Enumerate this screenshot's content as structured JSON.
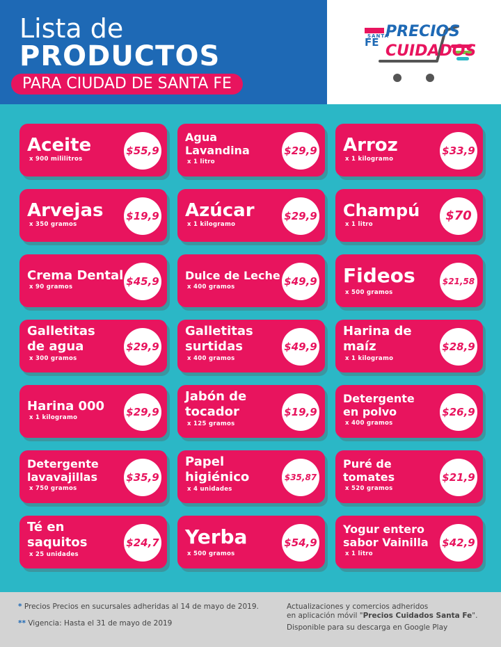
{
  "header": {
    "title_line1": "Lista de",
    "title_line2": "PRODUCTOS",
    "subtitle": "PARA CIUDAD DE SANTA FE",
    "logo": {
      "small_top": "SANTA",
      "small_bottom": "FE",
      "line1": "PRECIOS",
      "line2": "CUIDADOS"
    }
  },
  "colors": {
    "blue": "#1e69b5",
    "pink": "#e8145e",
    "teal": "#2bb7c6",
    "green": "#7ac143",
    "gray": "#d3d3d3"
  },
  "products": [
    {
      "name": "Aceite",
      "qty": "x 900 mililitros",
      "price": "$55,9"
    },
    {
      "name": "Agua Lavandina",
      "qty": "x 1 litro",
      "price": "$29,9"
    },
    {
      "name": "Arroz",
      "qty": "x 1 kilogramo",
      "price": "$33,9"
    },
    {
      "name": "Arvejas",
      "qty": "x 350 gramos",
      "price": "$19,9"
    },
    {
      "name": "Azúcar",
      "qty": "x 1 kilogramo",
      "price": "$29,9"
    },
    {
      "name": "Champú",
      "qty": "x 1 litro",
      "price": "$70"
    },
    {
      "name": "Crema Dental",
      "qty": "x 90 gramos",
      "price": "$45,9"
    },
    {
      "name": "Dulce de Leche",
      "qty": "x 400 gramos",
      "price": "$49,9"
    },
    {
      "name": "Fideos",
      "qty": "x 500 gramos",
      "price": "$21,58"
    },
    {
      "name": "Galletitas de agua",
      "qty": "x 300 gramos",
      "price": "$29,9"
    },
    {
      "name": "Galletitas surtidas",
      "qty": "x 400 gramos",
      "price": "$49,9"
    },
    {
      "name": "Harina de maíz",
      "qty": "x 1 kilogramo",
      "price": "$28,9"
    },
    {
      "name": "Harina 000",
      "qty": "x 1 kilogramo",
      "price": "$29,9"
    },
    {
      "name": "Jabón de tocador",
      "qty": "x 125 gramos",
      "price": "$19,9"
    },
    {
      "name": "Detergente en polvo",
      "qty": "x 400 gramos",
      "price": "$26,9"
    },
    {
      "name": "Detergente lavavajillas",
      "qty": "x 750 gramos",
      "price": "$35,9"
    },
    {
      "name": "Papel higiénico",
      "qty": "x 4 unidades",
      "price": "$35,87"
    },
    {
      "name": "Puré de tomates",
      "qty": "x 520 gramos",
      "price": "$21,9"
    },
    {
      "name": "Té en saquitos",
      "qty": "x 25 unidades",
      "price": "$24,7"
    },
    {
      "name": "Yerba",
      "qty": "x 500 gramos",
      "price": "$54,9"
    },
    {
      "name": "Yogur entero sabor Vainilla",
      "qty": "x 1 litro",
      "price": "$42,9"
    }
  ],
  "footer": {
    "note1_mark": "*",
    "note1": "Precios Precios en sucursales adheridas al 14 de mayo de 2019.",
    "note2_mark": "**",
    "note2": "Vigencia: Hasta el 31 de mayo de 2019",
    "right_line1": "Actualizaciones y comercios adheridos",
    "right_line2_prefix": "en aplicación móvil \"",
    "right_line2_app": "Precios Cuidados Santa Fe",
    "right_line2_suffix": "\".",
    "right_line3": "Disponible para su descarga en Google Play"
  }
}
